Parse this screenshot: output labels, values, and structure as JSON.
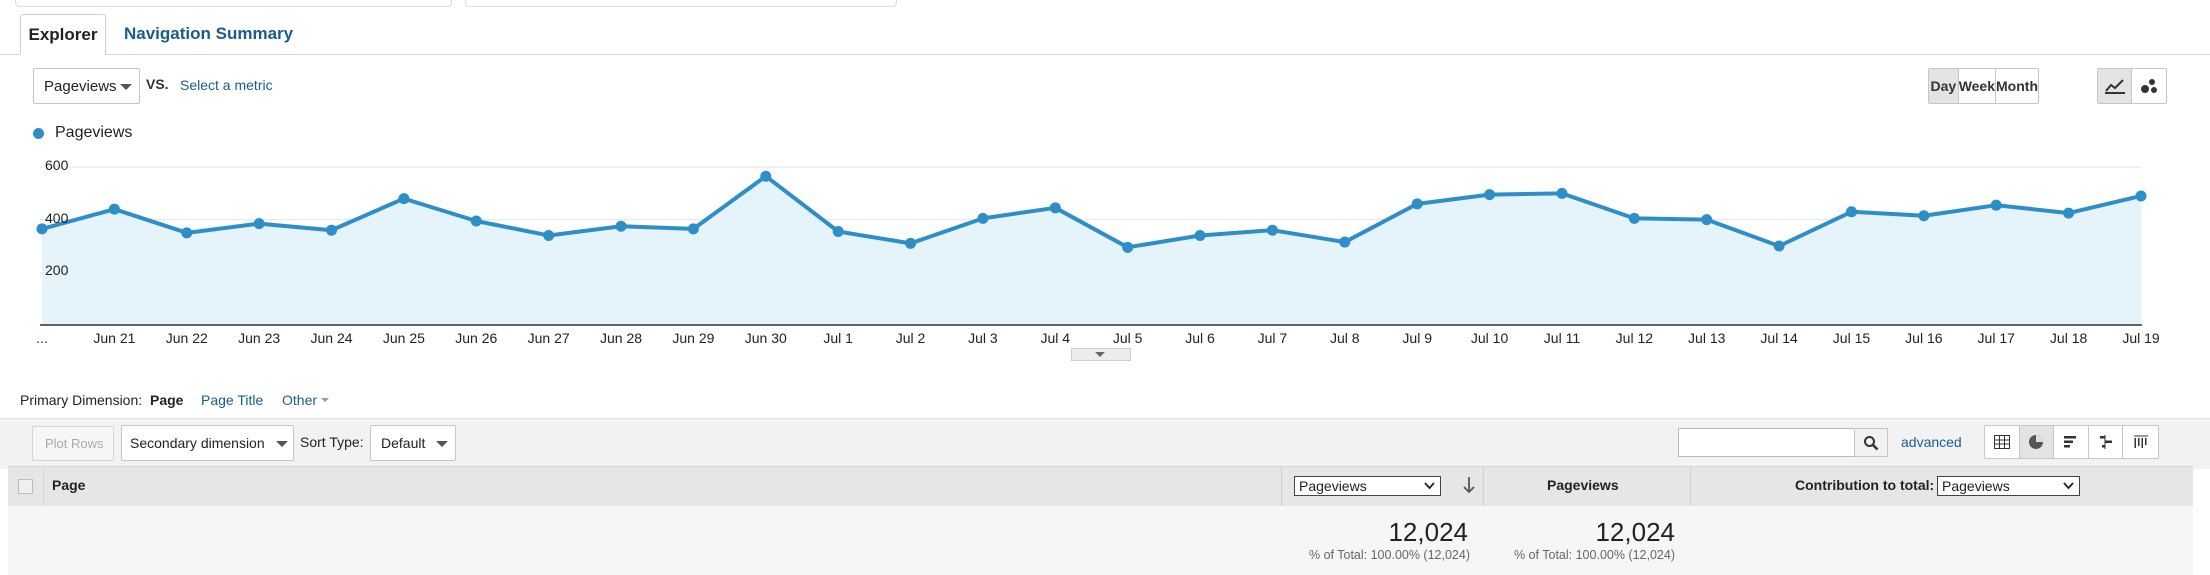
{
  "tabs": [
    {
      "label": "Explorer",
      "active": true
    },
    {
      "label": "Navigation Summary",
      "active": false
    }
  ],
  "metric_bar": {
    "metric_selected": "Pageviews",
    "vs_label": "VS.",
    "select_metric_label": "Select a metric",
    "period_buttons": [
      {
        "label": "Day",
        "active": true
      },
      {
        "label": "Week",
        "active": false
      },
      {
        "label": "Month",
        "active": false
      }
    ],
    "chart_type_icons": [
      "line-chart-icon",
      "motion-chart-icon"
    ]
  },
  "chart_data": {
    "type": "area",
    "legend": [
      {
        "name": "Pageviews",
        "color": "#2e8ec7"
      }
    ],
    "series": [
      {
        "name": "Pageviews",
        "color": "#2e8ec7",
        "fill": "#e5f3fb",
        "x": [
          "…",
          "Jun 21",
          "Jun 22",
          "Jun 23",
          "Jun 24",
          "Jun 25",
          "Jun 26",
          "Jun 27",
          "Jun 28",
          "Jun 29",
          "Jun 30",
          "Jul 1",
          "Jul 2",
          "Jul 3",
          "Jul 4",
          "Jul 5",
          "Jul 6",
          "Jul 7",
          "Jul 8",
          "Jul 9",
          "Jul 10",
          "Jul 11",
          "Jul 12",
          "Jul 13",
          "Jul 14",
          "Jul 15",
          "Jul 16",
          "Jul 17",
          "Jul 18",
          "Jul 19"
        ],
        "values": [
          365,
          440,
          350,
          385,
          360,
          480,
          395,
          340,
          375,
          365,
          565,
          355,
          310,
          405,
          445,
          295,
          340,
          360,
          315,
          460,
          495,
          500,
          405,
          400,
          300,
          430,
          415,
          455,
          425,
          490
        ]
      }
    ],
    "x_tick_labels": [
      "...",
      "Jun 21",
      "Jun 22",
      "Jun 23",
      "Jun 24",
      "Jun 25",
      "Jun 26",
      "Jun 27",
      "Jun 28",
      "Jun 29",
      "Jun 30",
      "Jul 1",
      "Jul 2",
      "Jul 3",
      "Jul 4",
      "Jul 5",
      "Jul 6",
      "Jul 7",
      "Jul 8",
      "Jul 9",
      "Jul 10",
      "Jul 11",
      "Jul 12",
      "Jul 13",
      "Jul 14",
      "Jul 15",
      "Jul 16",
      "Jul 17",
      "Jul 18",
      "Jul 19"
    ],
    "y_tick_labels": [
      "600",
      "400",
      "200"
    ],
    "y_ticks": [
      600,
      400,
      200
    ],
    "ylim": [
      0,
      700
    ],
    "grid": true
  },
  "dimension_bar": {
    "label": "Primary Dimension:",
    "options": [
      {
        "label": "Page",
        "active": true
      },
      {
        "label": "Page Title",
        "active": false
      },
      {
        "label": "Other",
        "active": false
      }
    ]
  },
  "toolbar": {
    "plot_rows": "Plot Rows",
    "secondary_dimension": "Secondary dimension",
    "sort_type_label": "Sort Type:",
    "sort_type_value": "Default",
    "search_placeholder": "",
    "advanced": "advanced",
    "view_icons": [
      "data-table-icon",
      "pie-chart-icon",
      "performance-icon",
      "comparison-icon",
      "term-cloud-icon"
    ]
  },
  "table": {
    "headers": {
      "page": "Page",
      "metric_select": "Pageviews",
      "pageviews": "Pageviews",
      "contribution_label": "Contribution to total:",
      "contribution_select": "Pageviews"
    },
    "totals": {
      "value_1": "12,024",
      "sub_1": "% of Total: 100.00% (12,024)",
      "value_2": "12,024",
      "sub_2": "% of Total: 100.00% (12,024)"
    }
  }
}
